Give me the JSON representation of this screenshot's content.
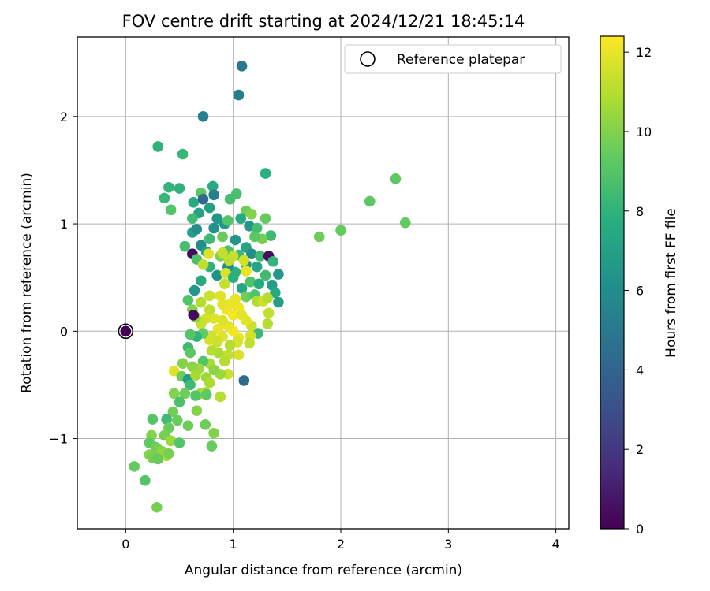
{
  "chart_data": {
    "type": "scatter",
    "title": "FOV centre drift starting at 2024/12/21 18:45:14",
    "xlabel": "Angular distance from reference (arcmin)",
    "ylabel": "Rotation from reference (arcmin)",
    "xlim": [
      -0.45,
      4.12
    ],
    "ylim": [
      -1.84,
      2.74
    ],
    "x_ticks": [
      0,
      1,
      2,
      3,
      4
    ],
    "x_tick_labels": [
      "0",
      "1",
      "2",
      "3",
      "4"
    ],
    "y_ticks": [
      -1,
      0,
      1,
      2
    ],
    "y_tick_labels": [
      "−1",
      "0",
      "1",
      "2"
    ],
    "grid": true,
    "legend": {
      "position": "top-right",
      "label": "Reference platepar"
    },
    "reference_point": {
      "x": 0,
      "y": 0
    },
    "colorbar": {
      "label": "Hours from first FF file",
      "min": 0,
      "max": 12.4,
      "ticks": [
        0,
        2,
        4,
        6,
        8,
        10,
        12
      ],
      "tick_labels": [
        "0",
        "2",
        "4",
        "6",
        "8",
        "10",
        "12"
      ],
      "colormap": "viridis"
    },
    "points": [
      [
        1.08,
        2.47,
        5.0
      ],
      [
        1.05,
        2.2,
        5.2
      ],
      [
        0.72,
        2.0,
        5.4
      ],
      [
        0.3,
        1.72,
        8.0
      ],
      [
        0.53,
        1.65,
        8.2
      ],
      [
        1.3,
        1.47,
        7.8
      ],
      [
        0.81,
        1.35,
        7.5
      ],
      [
        0.4,
        1.34,
        8.1
      ],
      [
        0.5,
        1.33,
        8.0
      ],
      [
        0.36,
        1.24,
        8.2
      ],
      [
        0.82,
        1.27,
        5.2
      ],
      [
        1.03,
        1.28,
        8.7
      ],
      [
        0.97,
        1.23,
        8.6
      ],
      [
        0.7,
        1.29,
        9.2
      ],
      [
        0.42,
        1.13,
        9.0
      ],
      [
        0.63,
        1.2,
        7.5
      ],
      [
        0.68,
        1.1,
        7.1
      ],
      [
        0.72,
        1.23,
        4.2
      ],
      [
        1.12,
        1.12,
        9.6
      ],
      [
        1.17,
        1.09,
        10.0
      ],
      [
        0.62,
        1.05,
        8.5
      ],
      [
        0.78,
        1.15,
        7.0
      ],
      [
        0.85,
        1.05,
        6.4
      ],
      [
        0.92,
        1.0,
        6.5
      ],
      [
        0.95,
        1.03,
        9.0
      ],
      [
        1.07,
        1.05,
        7.5
      ],
      [
        1.15,
        0.98,
        6.6
      ],
      [
        1.22,
        0.96,
        8.6
      ],
      [
        1.3,
        1.05,
        9.4
      ],
      [
        1.35,
        0.89,
        8.4
      ],
      [
        1.27,
        0.86,
        9.8
      ],
      [
        1.2,
        0.88,
        9.2
      ],
      [
        1.12,
        0.78,
        7.2
      ],
      [
        1.02,
        0.85,
        6.4
      ],
      [
        0.9,
        0.88,
        9.5
      ],
      [
        0.82,
        0.96,
        6.3
      ],
      [
        0.78,
        0.86,
        8.4
      ],
      [
        0.7,
        0.8,
        5.9
      ],
      [
        0.62,
        0.92,
        7.0
      ],
      [
        0.66,
        0.95,
        6.1
      ],
      [
        0.55,
        0.79,
        8.6
      ],
      [
        0.75,
        0.74,
        7.1
      ],
      [
        0.88,
        0.7,
        9.9
      ],
      [
        0.95,
        0.75,
        8.8
      ],
      [
        1.05,
        0.71,
        8.3
      ],
      [
        1.17,
        0.72,
        6.0
      ],
      [
        1.25,
        0.7,
        8.4
      ],
      [
        1.33,
        0.7,
        0.5
      ],
      [
        1.37,
        0.65,
        8.1
      ],
      [
        1.42,
        0.53,
        6.6
      ],
      [
        1.36,
        0.43,
        6.8
      ],
      [
        1.39,
        0.36,
        7.5
      ],
      [
        1.42,
        0.27,
        7.0
      ],
      [
        1.3,
        0.52,
        8.5
      ],
      [
        1.22,
        0.6,
        7.2
      ],
      [
        1.12,
        0.62,
        6.5
      ],
      [
        1.02,
        0.55,
        7.8
      ],
      [
        0.95,
        0.6,
        6.0
      ],
      [
        0.85,
        0.52,
        6.2
      ],
      [
        0.78,
        0.6,
        8.0
      ],
      [
        0.7,
        0.47,
        7.5
      ],
      [
        0.62,
        0.72,
        0.3
      ],
      [
        0.66,
        0.67,
        8.8
      ],
      [
        0.72,
        0.62,
        11.2
      ],
      [
        0.77,
        0.72,
        11.8
      ],
      [
        0.9,
        0.73,
        11.3
      ],
      [
        1.0,
        0.7,
        11.4
      ],
      [
        1.1,
        0.66,
        11.6
      ],
      [
        1.12,
        0.56,
        12.0
      ],
      [
        0.96,
        0.66,
        11.2
      ],
      [
        0.93,
        0.54,
        11.7
      ],
      [
        0.92,
        0.44,
        11.3
      ],
      [
        1.0,
        0.5,
        7.8
      ],
      [
        1.08,
        0.4,
        7.4
      ],
      [
        1.12,
        0.32,
        9.6
      ],
      [
        1.16,
        0.46,
        8.9
      ],
      [
        1.24,
        0.44,
        7.6
      ],
      [
        1.2,
        0.34,
        8.9
      ],
      [
        1.22,
        0.28,
        11.0
      ],
      [
        1.28,
        0.28,
        11.5
      ],
      [
        1.32,
        0.31,
        11.0
      ],
      [
        1.33,
        0.17,
        11.3
      ],
      [
        1.32,
        0.07,
        11.0
      ],
      [
        1.23,
        -0.02,
        8.3
      ],
      [
        1.17,
        0.05,
        11.4
      ],
      [
        1.12,
        0.1,
        11.9
      ],
      [
        1.16,
        -0.04,
        11.6
      ],
      [
        1.15,
        -0.11,
        11.2
      ],
      [
        1.05,
        -0.06,
        12.0
      ],
      [
        1.0,
        0.0,
        12.2
      ],
      [
        0.95,
        0.05,
        12.0
      ],
      [
        0.9,
        0.1,
        11.7
      ],
      [
        0.86,
        0.02,
        12.0
      ],
      [
        0.8,
        -0.05,
        11.5
      ],
      [
        0.82,
        0.12,
        11.8
      ],
      [
        0.78,
        0.2,
        11.2
      ],
      [
        0.75,
        0.12,
        11.6
      ],
      [
        0.7,
        0.07,
        11.3
      ],
      [
        0.65,
        0.13,
        10.3
      ],
      [
        0.62,
        0.2,
        10.0
      ],
      [
        0.63,
        0.15,
        0.4
      ],
      [
        0.58,
        0.29,
        8.9
      ],
      [
        0.64,
        0.38,
        6.5
      ],
      [
        0.7,
        0.27,
        11.0
      ],
      [
        0.78,
        0.33,
        11.4
      ],
      [
        0.88,
        0.33,
        11.8
      ],
      [
        0.98,
        0.26,
        12.0
      ],
      [
        1.05,
        0.22,
        12.1
      ],
      [
        1.02,
        0.3,
        12.0
      ],
      [
        0.94,
        0.2,
        12.1
      ],
      [
        0.9,
        0.25,
        11.9
      ],
      [
        1.0,
        0.15,
        12.2
      ],
      [
        1.08,
        0.15,
        11.9
      ],
      [
        1.04,
        -0.1,
        11.7
      ],
      [
        0.97,
        -0.13,
        11.0
      ],
      [
        0.9,
        -0.05,
        11.8
      ],
      [
        0.85,
        -0.1,
        11.4
      ],
      [
        0.78,
        -0.08,
        11.6
      ],
      [
        0.72,
        -0.02,
        9.4
      ],
      [
        0.66,
        -0.05,
        8.0
      ],
      [
        0.6,
        -0.03,
        9.0
      ],
      [
        0.95,
        -0.22,
        11.2
      ],
      [
        1.05,
        -0.22,
        11.7
      ],
      [
        1.1,
        -0.46,
        4.3
      ],
      [
        0.95,
        -0.4,
        11.4
      ],
      [
        0.88,
        -0.4,
        10.5
      ],
      [
        0.92,
        -0.28,
        11.0
      ],
      [
        0.86,
        -0.2,
        10.8
      ],
      [
        0.8,
        -0.18,
        11.0
      ],
      [
        0.78,
        -0.3,
        10.8
      ],
      [
        0.72,
        -0.28,
        9.0
      ],
      [
        0.68,
        -0.35,
        10.6
      ],
      [
        0.62,
        -0.33,
        10.2
      ],
      [
        0.58,
        -0.15,
        8.4
      ],
      [
        0.6,
        -0.2,
        9.2
      ],
      [
        0.53,
        -0.3,
        10.0
      ],
      [
        0.45,
        -0.37,
        11.8
      ],
      [
        0.52,
        -0.42,
        9.6
      ],
      [
        0.58,
        -0.45,
        6.8
      ],
      [
        0.6,
        -0.5,
        8.4
      ],
      [
        0.65,
        -0.41,
        10.7
      ],
      [
        0.75,
        -0.43,
        10.5
      ],
      [
        0.78,
        -0.48,
        10.8
      ],
      [
        0.82,
        -0.36,
        10.2
      ],
      [
        0.7,
        -0.58,
        10.4
      ],
      [
        0.74,
        -0.57,
        10.9
      ],
      [
        0.65,
        -0.6,
        9.0
      ],
      [
        0.75,
        -0.59,
        9.3
      ],
      [
        0.55,
        -0.58,
        9.6
      ],
      [
        0.45,
        -0.58,
        10.0
      ],
      [
        0.5,
        -0.66,
        8.8
      ],
      [
        0.44,
        -0.75,
        9.7
      ],
      [
        0.48,
        -0.83,
        9.5
      ],
      [
        0.38,
        -0.82,
        8.4
      ],
      [
        0.4,
        -0.9,
        9.5
      ],
      [
        0.36,
        -0.97,
        9.8
      ],
      [
        0.42,
        -1.02,
        10.5
      ],
      [
        0.5,
        -1.04,
        9.0
      ],
      [
        0.58,
        -0.88,
        9.6
      ],
      [
        0.66,
        -0.74,
        10.0
      ],
      [
        0.74,
        -0.87,
        9.6
      ],
      [
        0.82,
        -0.95,
        10.0
      ],
      [
        0.88,
        -0.61,
        11.0
      ],
      [
        0.8,
        -1.07,
        9.5
      ],
      [
        0.25,
        -0.82,
        9.0
      ],
      [
        0.24,
        -0.97,
        10.0
      ],
      [
        0.22,
        -1.04,
        9.3
      ],
      [
        0.28,
        -1.08,
        9.6
      ],
      [
        0.3,
        -1.1,
        9.8
      ],
      [
        0.34,
        -1.12,
        10.2
      ],
      [
        0.38,
        -1.16,
        10.8
      ],
      [
        0.4,
        -1.14,
        9.8
      ],
      [
        0.22,
        -1.15,
        10.0
      ],
      [
        0.25,
        -1.18,
        9.8
      ],
      [
        0.3,
        -1.19,
        9.5
      ],
      [
        0.08,
        -1.26,
        9.4
      ],
      [
        0.18,
        -1.39,
        9.0
      ],
      [
        0.29,
        -1.64,
        9.8
      ],
      [
        1.8,
        0.88,
        9.6
      ],
      [
        2.0,
        0.94,
        9.4
      ],
      [
        2.27,
        1.21,
        9.2
      ],
      [
        2.51,
        1.42,
        9.3
      ],
      [
        2.6,
        1.01,
        9.4
      ]
    ]
  }
}
